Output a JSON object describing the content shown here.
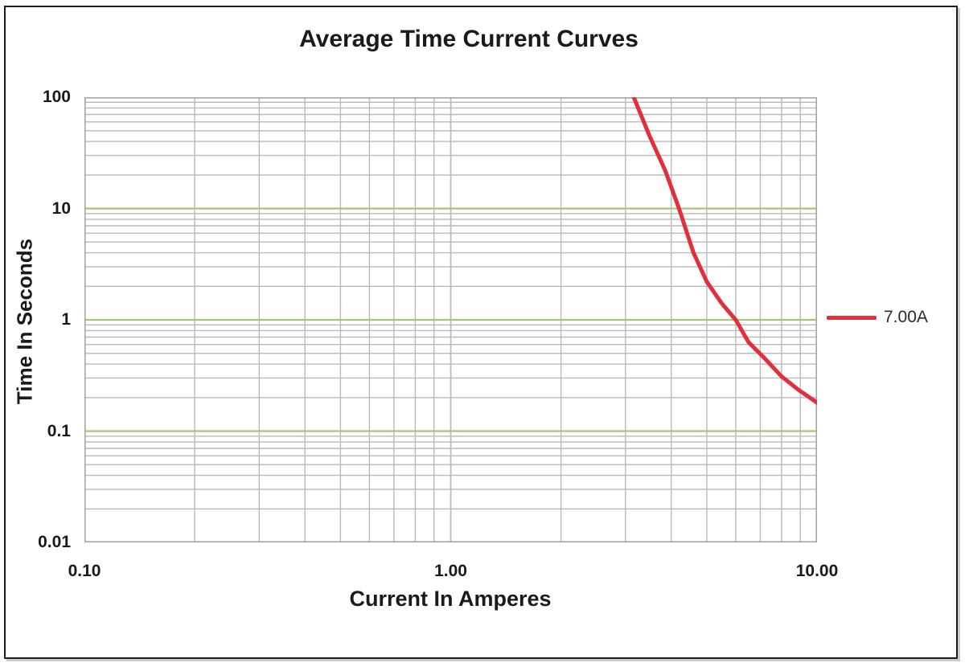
{
  "frame": {
    "border_color": "#1c1c1c",
    "background": "#ffffff"
  },
  "chart_data": {
    "type": "line",
    "title": "Average Time Current Curves",
    "xlabel": "Current In Amperes",
    "ylabel": "Time In Seconds",
    "x_scale": "log",
    "y_scale": "log",
    "xlim": [
      0.1,
      10
    ],
    "ylim": [
      0.01,
      100
    ],
    "x_ticks": [
      {
        "value": 0.1,
        "label": "0.10"
      },
      {
        "value": 1,
        "label": "1.00"
      },
      {
        "value": 10,
        "label": "10.00"
      }
    ],
    "y_ticks": [
      {
        "value": 100,
        "label": "100"
      },
      {
        "value": 10,
        "label": "10"
      },
      {
        "value": 1,
        "label": "1"
      },
      {
        "value": 0.1,
        "label": "0.1"
      },
      {
        "value": 0.01,
        "label": "0.01"
      }
    ],
    "grid": {
      "on": true,
      "y_major_values": [
        100,
        10,
        1,
        0.1
      ],
      "major_color": "#a6c47c",
      "minor_color": "#b9b9be",
      "border_color": "#a6a6a6"
    },
    "legend_position": "right",
    "series": [
      {
        "name": "7.00A",
        "color": "#e0303a",
        "width": 5,
        "points": [
          [
            3.16,
            100
          ],
          [
            3.5,
            44
          ],
          [
            3.85,
            22
          ],
          [
            4.2,
            10
          ],
          [
            4.6,
            4.0
          ],
          [
            5.0,
            2.2
          ],
          [
            5.5,
            1.4
          ],
          [
            6.0,
            1.0
          ],
          [
            6.5,
            0.63
          ],
          [
            7.2,
            0.45
          ],
          [
            8.0,
            0.31
          ],
          [
            8.9,
            0.235
          ],
          [
            10.0,
            0.18
          ]
        ]
      }
    ]
  }
}
